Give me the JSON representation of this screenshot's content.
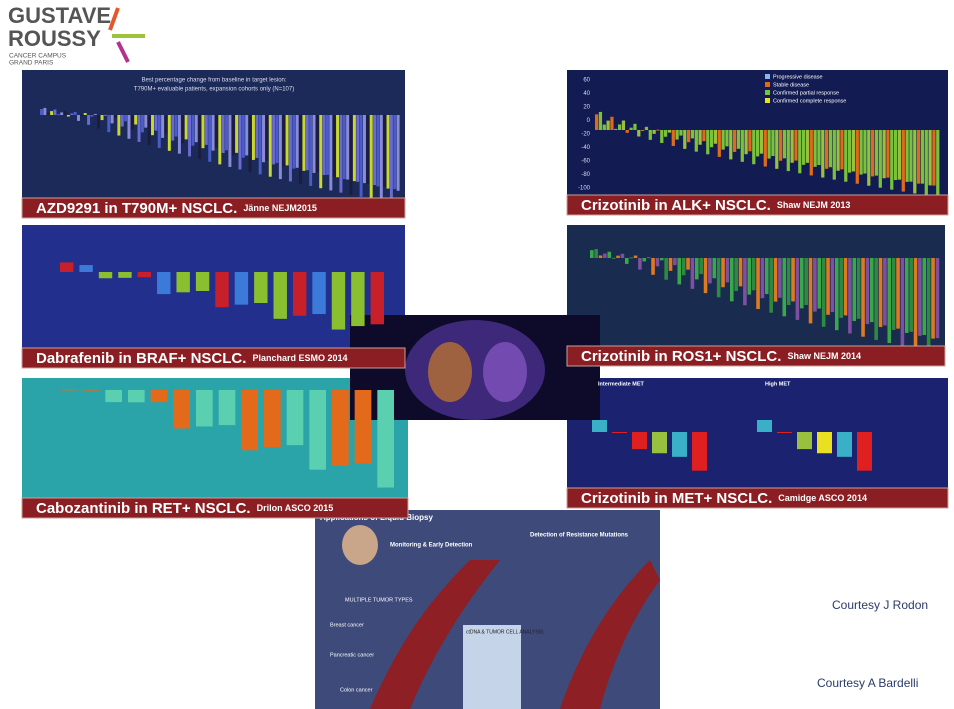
{
  "logo": {
    "line1": "GUSTAVE",
    "line2": "ROUSSY",
    "line3": "CANCER CAMPUS",
    "line4": "GRAND PARIS"
  },
  "panels": [
    {
      "caption": "AZD9291 in T790M+ NSCLC.",
      "reference": "Jänne NEJM2015",
      "title": "Best percentage change from baseline in target lesion:",
      "subtitle": "T790M+ evaluable patients, expansion cohorts only (N=107)"
    },
    {
      "caption": "Crizotinib in ALK+ NSCLC.",
      "reference": "Shaw NEJM 2013",
      "legend": [
        "Progressive disease",
        "Stable disease",
        "Confirmed partial response",
        "Confirmed complete response"
      ],
      "yticks": [
        "60",
        "40",
        "20",
        "0",
        "-20",
        "-40",
        "-60",
        "-80",
        "-100"
      ]
    },
    {
      "caption": "Dabrafenib in BRAF+ NSCLC.",
      "reference": "Planchard ESMO 2014"
    },
    {
      "caption": "Crizotinib in ROS1+ NSCLC.",
      "reference": "Shaw NEJM 2014"
    },
    {
      "caption": "Cabozantinib in RET+ NSCLC.",
      "reference": "Drilon ASCO 2015"
    },
    {
      "caption": "Crizotinib in MET+ NSCLC.",
      "reference": "Camidge ASCO 2014",
      "groups": [
        "Intermediate MET",
        "High MET"
      ]
    }
  ],
  "liquid_biopsy": {
    "title": "Applications of Liquid Biopsy",
    "left_heading": "Monitoring & Early Detection",
    "right_heading": "Detection of Resistance Mutations",
    "tumor_types": "MULTIPLE TUMOR TYPES",
    "labels": [
      "Breast cancer",
      "Pancreatic cancer",
      "Colon cancer"
    ],
    "analysis": "ctDNA & TUMOR CELL ANALYSIS"
  },
  "credits": [
    "Courtesy J Rodon",
    "Courtesy A Bardelli"
  ]
}
